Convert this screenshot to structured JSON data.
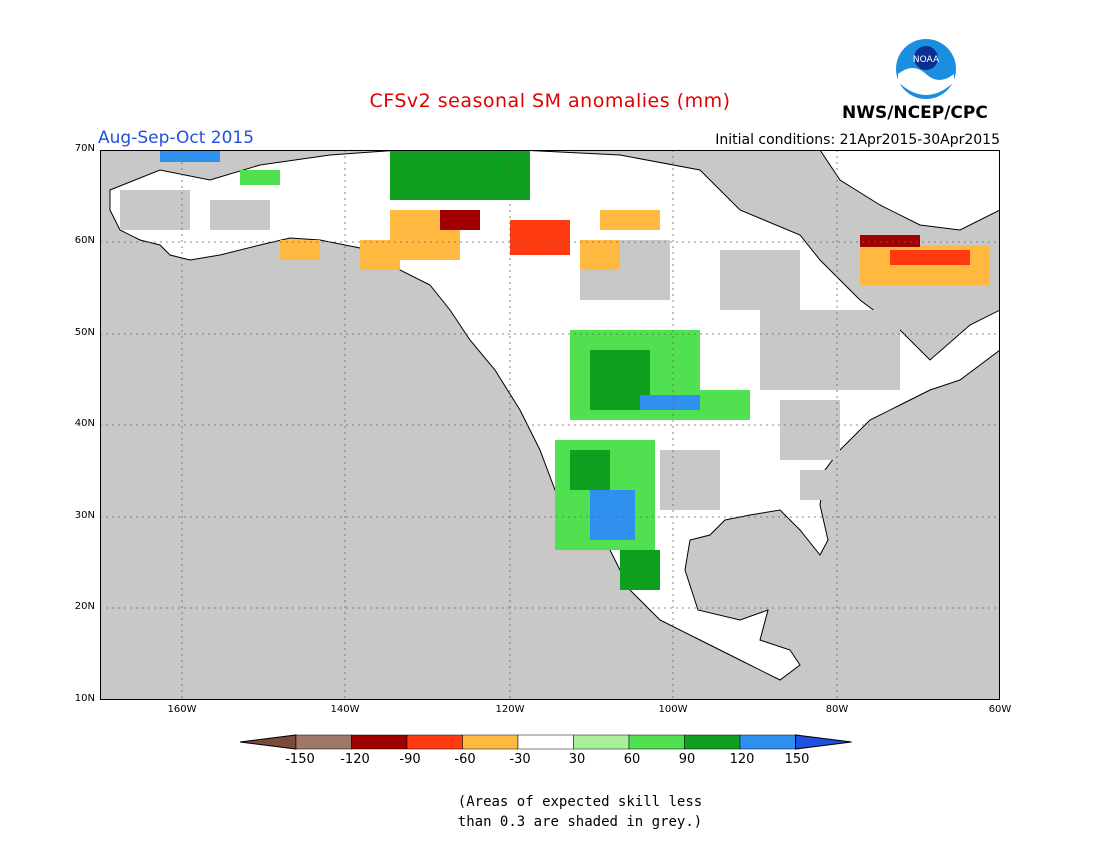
{
  "title": "CFSv2 seasonal SM anomalies (mm)",
  "period": "Aug-Sep-Oct 2015",
  "initial_conditions": "Initial conditions: 21Apr2015-30Apr2015",
  "organization": "NWS/NCEP/CPC",
  "logo_text": "NOAA",
  "latitude_labels": [
    "70N",
    "60N",
    "50N",
    "40N",
    "30N",
    "20N",
    "10N"
  ],
  "longitude_labels": [
    "160W",
    "140W",
    "120W",
    "100W",
    "80W",
    "60W"
  ],
  "colorbar": {
    "labels": [
      "-150",
      "-120",
      "-90",
      "-60",
      "-30",
      "30",
      "60",
      "90",
      "120",
      "150"
    ],
    "colors": [
      "#7b4a3a",
      "#a0786a",
      "#a00000",
      "#ff3a10",
      "#ffb840",
      "#ffffff",
      "#a8f098",
      "#50e050",
      "#10a020",
      "#3090f0",
      "#2050e0"
    ]
  },
  "note_line1": "(Areas of expected skill less",
  "note_line2": "than 0.3 are shaded in grey.)",
  "colors": {
    "ocean": "#c8c8c8",
    "land_white": "#ffffff",
    "grey_skill": "#c8c8c8"
  }
}
